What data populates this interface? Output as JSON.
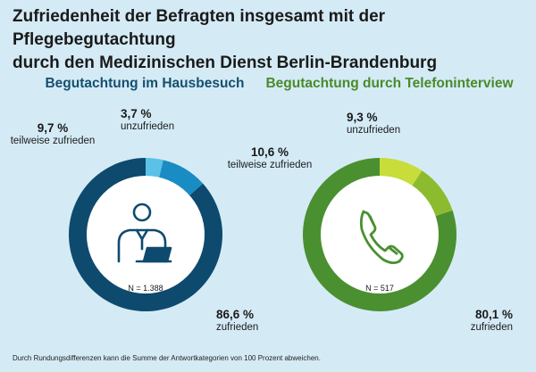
{
  "title_line1": "Zufriedenheit der Befragten insgesamt mit der Pflegebegutachtung",
  "title_line2": "durch den Medizinischen Dienst Berlin-Brandenburg",
  "footnote": "Durch Rundungsdifferenzen kann die Summe der Antwortkategorien von 100 Prozent abweichen.",
  "chart_data": [
    {
      "type": "pie",
      "title": "Begutachtung im Hausbesuch",
      "n_label": "N = 1.388",
      "icon": "person-laptop-icon",
      "slices": [
        {
          "label": "unzufrieden",
          "value_label": "3,7 %",
          "value": 3.7,
          "color": "#5bc2e7"
        },
        {
          "label": "teilweise zufrieden",
          "value_label": "9,7 %",
          "value": 9.7,
          "color": "#1a8cc4"
        },
        {
          "label": "zufrieden",
          "value_label": "86,6 %",
          "value": 86.6,
          "color": "#0e4a6e"
        }
      ]
    },
    {
      "type": "pie",
      "title": "Begutachtung durch Telefoninterview",
      "n_label": "N = 517",
      "icon": "phone-handset-icon",
      "slices": [
        {
          "label": "unzufrieden",
          "value_label": "9,3 %",
          "value": 9.3,
          "color": "#c8dc3a"
        },
        {
          "label": "teilweise zufrieden",
          "value_label": "10,6 %",
          "value": 10.6,
          "color": "#8cbc2e"
        },
        {
          "label": "zufrieden",
          "value_label": "80,1 %",
          "value": 80.1,
          "color": "#4a9030"
        }
      ]
    }
  ]
}
